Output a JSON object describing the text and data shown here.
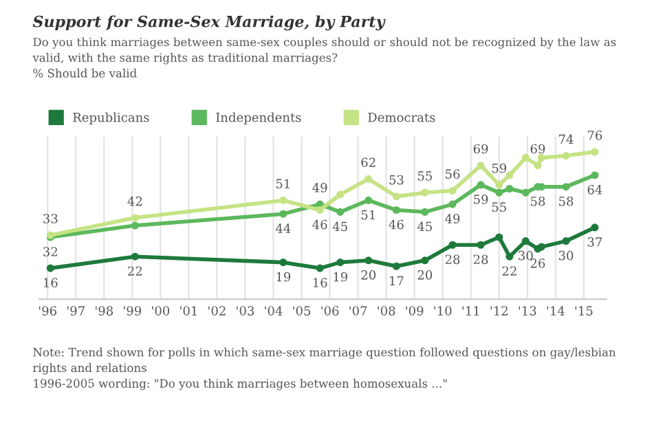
{
  "chart_data": {
    "type": "line",
    "title": "Support for Same-Sex Marriage, by Party",
    "subtitle": "Do you think marriages between same-sex couples should or should not be recognized by the law as valid, with the same rights as traditional marriages?\n% Should be valid",
    "annotations": [
      "Note: Trend shown for polls in which same-sex marriage question followed questions on gay/lesbian rights and relations\n1996-2005 wording: \"Do you think marriages between homosexuals ...\""
    ],
    "x": [
      1996.1,
      1999.1,
      2004.35,
      2005.65,
      2006.37,
      2007.37,
      2008.36,
      2009.37,
      2010.35,
      2011.35,
      2012.0,
      2012.37,
      2012.94,
      2013.37,
      2013.5,
      2014.37,
      2015.39
    ],
    "series": [
      {
        "name": "Republicans",
        "color": "#1e7a3c",
        "values": [
          16,
          22,
          19,
          16,
          19,
          20,
          17,
          20,
          28,
          28,
          32,
          22,
          30,
          26,
          27,
          30,
          37
        ],
        "value_labels": [
          "16",
          "22",
          "19",
          "16",
          "19",
          "20",
          "17",
          "20",
          "28",
          "28",
          null,
          "22",
          "30",
          "26",
          null,
          "30",
          "37"
        ]
      },
      {
        "name": "Independents",
        "color": "#5cb85c",
        "values": [
          32,
          38,
          44,
          49,
          45,
          51,
          46,
          45,
          49,
          59,
          55,
          57,
          55,
          58,
          58,
          58,
          64
        ],
        "value_labels": [
          "32",
          null,
          "44",
          "49",
          "45",
          "51",
          "46",
          "45",
          "49",
          "59",
          "55",
          null,
          null,
          "58",
          null,
          "58",
          "64"
        ]
      },
      {
        "name": "Democrats",
        "color": "#c5e384",
        "values": [
          33,
          42,
          51,
          46,
          54,
          62,
          53,
          55,
          56,
          69,
          59,
          64,
          73,
          69,
          73,
          74,
          76
        ],
        "value_labels": [
          "33",
          "42",
          "51",
          "46",
          null,
          "62",
          "53",
          "55",
          "56",
          "69",
          "59",
          null,
          null,
          "69",
          null,
          "74",
          "76"
        ]
      }
    ],
    "xlim": [
      1995.7,
      2015.8
    ],
    "xticks": [
      {
        "value": 1996,
        "label": "'96"
      },
      {
        "value": 1997,
        "label": "'97"
      },
      {
        "value": 1998,
        "label": "'98"
      },
      {
        "value": 1999,
        "label": "'99"
      },
      {
        "value": 2000,
        "label": "'00"
      },
      {
        "value": 2001,
        "label": "'01"
      },
      {
        "value": 2002,
        "label": "'02"
      },
      {
        "value": 2003,
        "label": "'03"
      },
      {
        "value": 2004,
        "label": "'04"
      },
      {
        "value": 2005,
        "label": "'05"
      },
      {
        "value": 2006,
        "label": "'06"
      },
      {
        "value": 2007,
        "label": "'07"
      },
      {
        "value": 2008,
        "label": "'08"
      },
      {
        "value": 2009,
        "label": "'09"
      },
      {
        "value": 2010,
        "label": "'10"
      },
      {
        "value": 2011,
        "label": "'11"
      },
      {
        "value": 2012,
        "label": "'12"
      },
      {
        "value": 2013,
        "label": "'13"
      },
      {
        "value": 2014,
        "label": "'14"
      },
      {
        "value": 2015,
        "label": "'15"
      }
    ],
    "ylim": [
      0,
      84
    ],
    "tick_labels": "x",
    "grid": "x",
    "legend": "top left",
    "marker": "circle",
    "line_style": "solid"
  }
}
